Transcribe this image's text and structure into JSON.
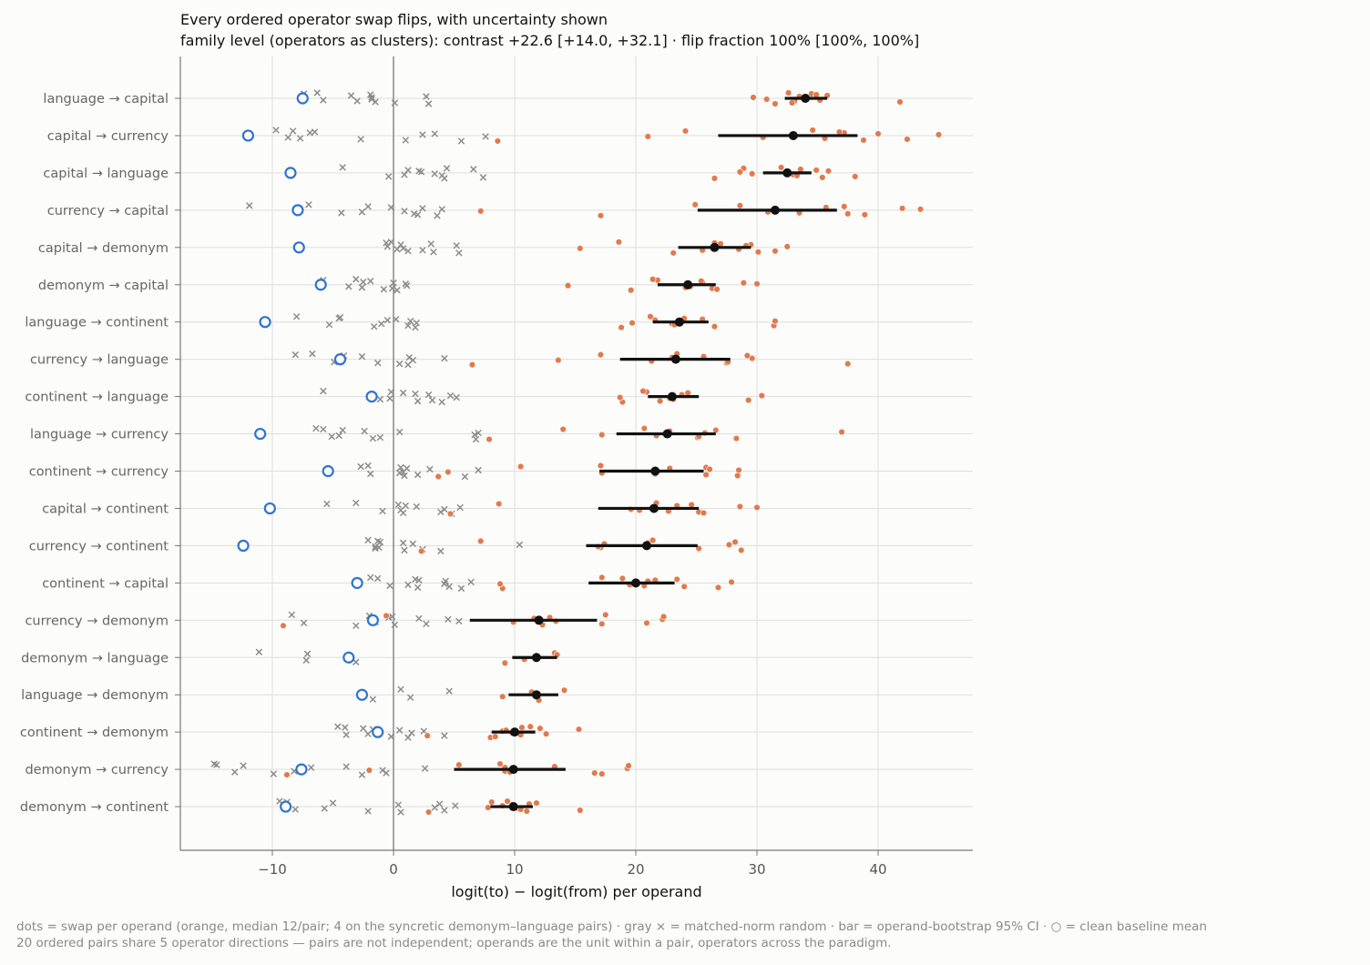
{
  "chart_data": {
    "type": "scatter",
    "title": "Every ordered operator swap flips, with uncertainty shown",
    "subtitle": "family level (operators as clusters): contrast +22.6 [+14.0, +32.1] · flip fraction 100% [100%, 100%]",
    "xlabel": "logit(to) − logit(from) per operand",
    "xlim": [
      -17.6,
      48.0
    ],
    "xticks": [
      -10,
      0,
      10,
      20,
      30,
      40
    ],
    "xtick_labels": [
      "−10",
      "0",
      "10",
      "20",
      "30",
      "40"
    ],
    "grid": true,
    "colors": {
      "swap": "#e07a4f",
      "random": "#8c8c8c",
      "bar": "#111111",
      "baseline": "#2f74d0",
      "grid": "#dedede",
      "axis": "#777777"
    },
    "footer": [
      "dots = swap per operand (orange, median 12/pair; 4 on the syncretic demonym–language pairs) · gray × = matched-norm random · bar = operand-bootstrap 95% CI · ○ = clean baseline mean",
      "20 ordered pairs share 5 operator directions — pairs are not independent; operands are the unit within a pair, operators across the paradigm."
    ],
    "pairs": [
      {
        "label": "language → capital",
        "mean": 34.0,
        "ci": [
          32.3,
          35.8
        ],
        "baseline": -7.5,
        "swaps": [
          31.5,
          34.5,
          35.2,
          35.8,
          41.8,
          29.7,
          30.8,
          32.6,
          33.1,
          34.9,
          32.9,
          33.5
        ],
        "random": [
          -6.3,
          -3.0,
          -1.9,
          0.1,
          2.7,
          2.9,
          -7.4,
          -5.8,
          -3.5,
          -1.5,
          -1.8,
          -1.8
        ]
      },
      {
        "label": "capital → currency",
        "mean": 33.0,
        "ci": [
          26.8,
          38.3
        ],
        "baseline": -12.0,
        "swaps": [
          8.6,
          24.1,
          30.5,
          37.2,
          42.4,
          45.0,
          21.0,
          34.6,
          35.6,
          36.8,
          38.8,
          40.0
        ],
        "random": [
          -9.7,
          -7.7,
          -6.5,
          1.0,
          3.4,
          5.6,
          -8.3,
          -8.7,
          -6.9,
          -2.7,
          2.4,
          7.6
        ]
      },
      {
        "label": "capital → language",
        "mean": 32.5,
        "ci": [
          30.5,
          34.5
        ],
        "baseline": -8.5,
        "swaps": [
          26.5,
          28.9,
          33.0,
          34.9,
          38.1,
          28.6,
          29.6,
          32.0,
          33.3,
          33.6,
          35.4,
          35.9
        ],
        "random": [
          -4.2,
          4.0,
          6.6,
          7.4,
          2.1,
          4.2,
          4.4,
          0.9,
          1.2,
          -0.4,
          2.3,
          3.4
        ]
      },
      {
        "label": "currency → capital",
        "mean": 31.5,
        "ci": [
          25.1,
          36.6
        ],
        "baseline": -7.9,
        "swaps": [
          17.1,
          28.6,
          30.9,
          35.7,
          37.5,
          43.5,
          7.2,
          24.9,
          33.5,
          37.2,
          38.9,
          42.0
        ],
        "random": [
          -7.0,
          -4.3,
          -2.1,
          2.0,
          2.4,
          3.6,
          -11.9,
          -2.6,
          -0.2,
          1.7,
          4.0,
          0.9
        ]
      },
      {
        "label": "capital → demonym",
        "mean": 26.5,
        "ci": [
          23.5,
          29.5
        ],
        "baseline": -7.8,
        "swaps": [
          23.1,
          26.5,
          28.5,
          29.5,
          31.5,
          32.5,
          15.4,
          18.6,
          25.5,
          27.0,
          30.1,
          29.1
        ],
        "random": [
          -0.2,
          2.4,
          3.1,
          3.3,
          5.2,
          5.4,
          -0.6,
          0.3,
          0.6,
          1.2,
          -0.5,
          0.8
        ]
      },
      {
        "label": "demonym → capital",
        "mean": 24.3,
        "ci": [
          21.8,
          26.6
        ],
        "baseline": -6.0,
        "swaps": [
          19.6,
          21.8,
          24.5,
          25.5,
          26.3,
          30.0,
          14.4,
          21.4,
          24.1,
          25.4,
          26.7,
          28.9
        ],
        "random": [
          -3.1,
          -2.6,
          -1.9,
          -0.8,
          0.0,
          0.3,
          -5.8,
          -3.7,
          -2.5,
          -0.1,
          1.0,
          1.1
        ]
      },
      {
        "label": "language → continent",
        "mean": 23.6,
        "ci": [
          21.4,
          26.0
        ],
        "baseline": -10.6,
        "swaps": [
          18.8,
          21.3,
          23.0,
          25.5,
          31.4,
          31.5,
          19.7,
          21.2,
          23.2,
          24.0,
          26.5,
          21.6
        ],
        "random": [
          -8.0,
          -5.3,
          -4.5,
          -1.6,
          -0.5,
          1.8,
          -4.4,
          -1.0,
          0.2,
          1.2,
          1.4,
          1.9
        ]
      },
      {
        "label": "currency → language",
        "mean": 23.3,
        "ci": [
          18.7,
          27.8
        ],
        "baseline": -4.4,
        "swaps": [
          6.5,
          17.1,
          21.3,
          25.6,
          27.5,
          29.6,
          13.6,
          23.4,
          27.6,
          29.2,
          37.5,
          23.0
        ],
        "random": [
          -6.7,
          -4.9,
          -4.1,
          0.5,
          1.3,
          1.2,
          -8.1,
          -4.6,
          -2.6,
          -1.3,
          4.2,
          1.6
        ]
      },
      {
        "label": "continent → language",
        "mean": 23.0,
        "ci": [
          21.0,
          25.2
        ],
        "baseline": -1.8,
        "swaps": [
          18.9,
          20.9,
          22.8,
          24.3,
          29.3,
          30.4,
          18.7,
          20.6,
          23.1,
          24.3,
          22.0,
          23.8
        ],
        "random": [
          -5.8,
          -1.1,
          0.8,
          2.0,
          2.9,
          4.0,
          -0.2,
          -0.3,
          1.8,
          3.2,
          4.7,
          5.2
        ]
      },
      {
        "label": "language → currency",
        "mean": 22.6,
        "ci": [
          18.4,
          26.6
        ],
        "baseline": -11.0,
        "swaps": [
          7.9,
          14.0,
          21.7,
          22.8,
          25.1,
          25.7,
          17.2,
          20.7,
          25.2,
          26.6,
          28.3,
          37.0
        ],
        "random": [
          -6.4,
          -5.1,
          -4.2,
          -1.7,
          0.5,
          6.8,
          -5.8,
          -4.5,
          -2.4,
          -1.1,
          7.0,
          6.7
        ]
      },
      {
        "label": "continent → currency",
        "mean": 21.6,
        "ci": [
          17.0,
          25.6
        ],
        "baseline": -5.4,
        "swaps": [
          3.7,
          10.5,
          17.2,
          22.8,
          25.8,
          28.5,
          4.5,
          17.1,
          21.6,
          25.8,
          28.4,
          26.1
        ],
        "random": [
          -2.1,
          -1.9,
          0.6,
          0.9,
          3.0,
          5.9,
          -2.7,
          0.5,
          1.1,
          2.0,
          7.0,
          0.8
        ]
      },
      {
        "label": "capital → continent",
        "mean": 21.5,
        "ci": [
          16.9,
          25.2
        ],
        "baseline": -10.2,
        "swaps": [
          4.7,
          8.7,
          20.3,
          23.4,
          25.2,
          30.0,
          19.6,
          21.7,
          22.7,
          24.6,
          25.6,
          28.6
        ],
        "random": [
          -3.1,
          -0.9,
          0.4,
          0.8,
          1.9,
          4.8,
          -5.5,
          0.6,
          1.0,
          3.9,
          5.5,
          4.2
        ]
      },
      {
        "label": "currency → continent",
        "mean": 20.9,
        "ci": [
          15.9,
          25.1
        ],
        "baseline": -12.4,
        "swaps": [
          2.3,
          7.2,
          17.1,
          21.0,
          25.2,
          27.7,
          16.9,
          21.4,
          25.2,
          28.2,
          28.7,
          17.4
        ],
        "random": [
          -2.1,
          -1.5,
          -1.1,
          0.9,
          1.6,
          3.9,
          -1.3,
          -1.2,
          0.8,
          2.4,
          10.4,
          -1.5
        ]
      },
      {
        "label": "continent → capital",
        "mean": 20.0,
        "ci": [
          16.1,
          23.2
        ],
        "baseline": -3.0,
        "swaps": [
          9.0,
          18.9,
          19.5,
          21.6,
          24.0,
          27.9,
          8.8,
          17.2,
          20.7,
          23.4,
          26.8,
          21.0
        ],
        "random": [
          -1.9,
          -0.3,
          1.8,
          2.0,
          4.3,
          5.6,
          -1.3,
          1.2,
          2.1,
          4.6,
          6.4,
          4.2
        ]
      },
      {
        "label": "currency → demonym",
        "mean": 12.0,
        "ci": [
          6.3,
          16.8
        ],
        "baseline": -1.7,
        "swaps": [
          -9.1,
          -0.6,
          9.9,
          12.9,
          17.2,
          22.2,
          13.4,
          17.5,
          20.9,
          22.3,
          12.3,
          11.6
        ],
        "random": [
          -8.4,
          -7.4,
          -0.1,
          0.1,
          2.1,
          -3.1,
          -2.0,
          -1.5,
          -0.4,
          2.7,
          4.5,
          5.4
        ]
      },
      {
        "label": "demonym → language",
        "mean": 11.8,
        "ci": [
          9.8,
          13.5
        ],
        "baseline": -3.7,
        "swaps": [
          9.2,
          13.3,
          10.8,
          13.5
        ],
        "random": [
          -11.1,
          -7.2,
          -7.1,
          -3.1
        ]
      },
      {
        "label": "language → demonym",
        "mean": 11.8,
        "ci": [
          9.5,
          13.6
        ],
        "baseline": -2.6,
        "swaps": [
          12.0,
          14.1,
          9.0,
          11.4
        ],
        "random": [
          0.6,
          1.4,
          4.6,
          -1.7
        ]
      },
      {
        "label": "continent → demonym",
        "mean": 10.0,
        "ci": [
          8.1,
          11.7
        ],
        "baseline": -1.3,
        "swaps": [
          8.0,
          10.6,
          12.6,
          15.3,
          2.8,
          9.0,
          9.8,
          11.3,
          10.5,
          12.1,
          8.4,
          9.3
        ],
        "random": [
          -4.6,
          -3.9,
          -2.5,
          -0.2,
          0.5,
          1.2,
          -4.0,
          -2.1,
          -1.7,
          4.2,
          2.5,
          1.5
        ]
      },
      {
        "label": "demonym → currency",
        "mean": 9.9,
        "ci": [
          5.0,
          14.2
        ],
        "baseline": -7.6,
        "swaps": [
          -8.8,
          5.4,
          9.2,
          13.3,
          16.6,
          19.3,
          -2.0,
          8.8,
          9.6,
          19.4,
          17.2,
          9.2
        ],
        "random": [
          -14.8,
          -13.1,
          -12.4,
          -9.9,
          -6.8,
          -2.6,
          -14.6,
          -8.2,
          -3.9,
          -0.6,
          2.6,
          -0.9
        ]
      },
      {
        "label": "demonym → continent",
        "mean": 9.9,
        "ci": [
          8.0,
          11.5
        ],
        "baseline": -8.9,
        "swaps": [
          2.9,
          8.1,
          10.3,
          11.2,
          15.4,
          9.0,
          7.8,
          9.4,
          10.5,
          11.8,
          11.0,
          9.8
        ],
        "random": [
          -9.4,
          -8.1,
          -5.0,
          -2.1,
          0.4,
          0.6,
          -8.8,
          -5.7,
          3.8,
          4.2,
          5.1,
          3.4
        ]
      }
    ]
  }
}
